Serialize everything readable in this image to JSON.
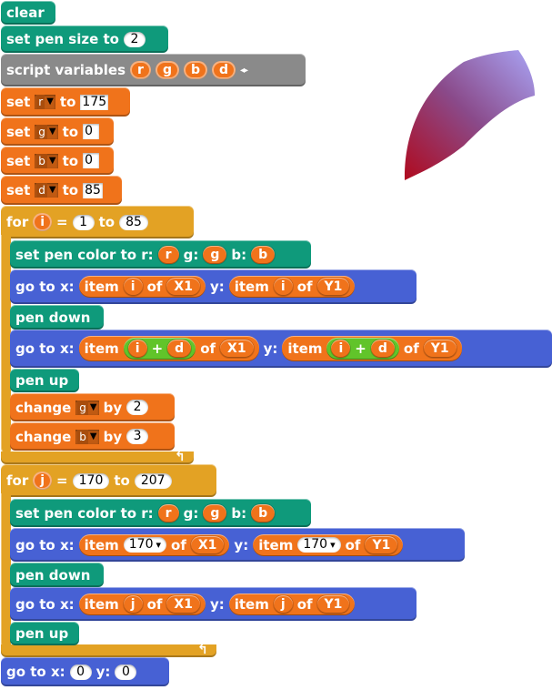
{
  "blocks": {
    "clear": "clear",
    "set_pen_size": {
      "label": "set pen size to",
      "value": "2"
    },
    "script_variables": {
      "label": "script variables",
      "vars": [
        "r",
        "g",
        "b",
        "d"
      ],
      "arrows": "◂▸"
    },
    "set_r": {
      "set": "set",
      "var": "r",
      "to": "to",
      "value": "175"
    },
    "set_g": {
      "set": "set",
      "var": "g",
      "to": "to",
      "value": "0"
    },
    "set_b": {
      "set": "set",
      "var": "b",
      "to": "to",
      "value": "0"
    },
    "set_d": {
      "set": "set",
      "var": "d",
      "to": "to",
      "value": "85"
    }
  },
  "loop1": {
    "for": "for",
    "var": "i",
    "eq": "=",
    "from": "1",
    "to_label": "to",
    "to": "85",
    "pen_color": {
      "label": "set pen color to r:",
      "r": "r",
      "g_label": "g:",
      "g": "g",
      "b_label": "b:",
      "b": "b"
    },
    "goto1": {
      "label": "go to x:",
      "item": "item",
      "idx": "i",
      "of": "of",
      "xlist": "X1",
      "y_label": "y:",
      "ylist": "Y1"
    },
    "pen_down": "pen down",
    "goto2": {
      "label": "go to x:",
      "item": "item",
      "a": "i",
      "plus": "+",
      "b": "d",
      "of": "of",
      "xlist": "X1",
      "y_label": "y:",
      "ylist": "Y1"
    },
    "pen_up": "pen up",
    "change_g": {
      "label": "change",
      "var": "g",
      "by": "by",
      "value": "2"
    },
    "change_b": {
      "label": "change",
      "var": "b",
      "by": "by",
      "value": "3"
    },
    "loop_arrow": "↰"
  },
  "loop2": {
    "for": "for",
    "var": "j",
    "eq": "=",
    "from": "170",
    "to_label": "to",
    "to": "207",
    "pen_color": {
      "label": "set pen color to r:",
      "r": "r",
      "g_label": "g:",
      "g": "g",
      "b_label": "b:",
      "b": "b"
    },
    "goto1": {
      "label": "go to x:",
      "item": "item",
      "idx": "170",
      "arrow": "▾",
      "of": "of",
      "xlist": "X1",
      "y_label": "y:",
      "ylist": "Y1"
    },
    "pen_down": "pen down",
    "goto2": {
      "label": "go to x:",
      "item": "item",
      "idx": "j",
      "of": "of",
      "xlist": "X1",
      "y_label": "y:",
      "ylist": "Y1"
    },
    "pen_up": "pen up",
    "loop_arrow": "↰"
  },
  "final_goto": {
    "label": "go to x:",
    "x": "0",
    "y_label": "y:",
    "y": "0"
  },
  "colors": {
    "pen": "#0f9a7b",
    "variables": "#f0731b",
    "control": "#e3a224",
    "motion": "#4761d4",
    "operators": "#61c42a",
    "grey": "#8a8a8a"
  }
}
